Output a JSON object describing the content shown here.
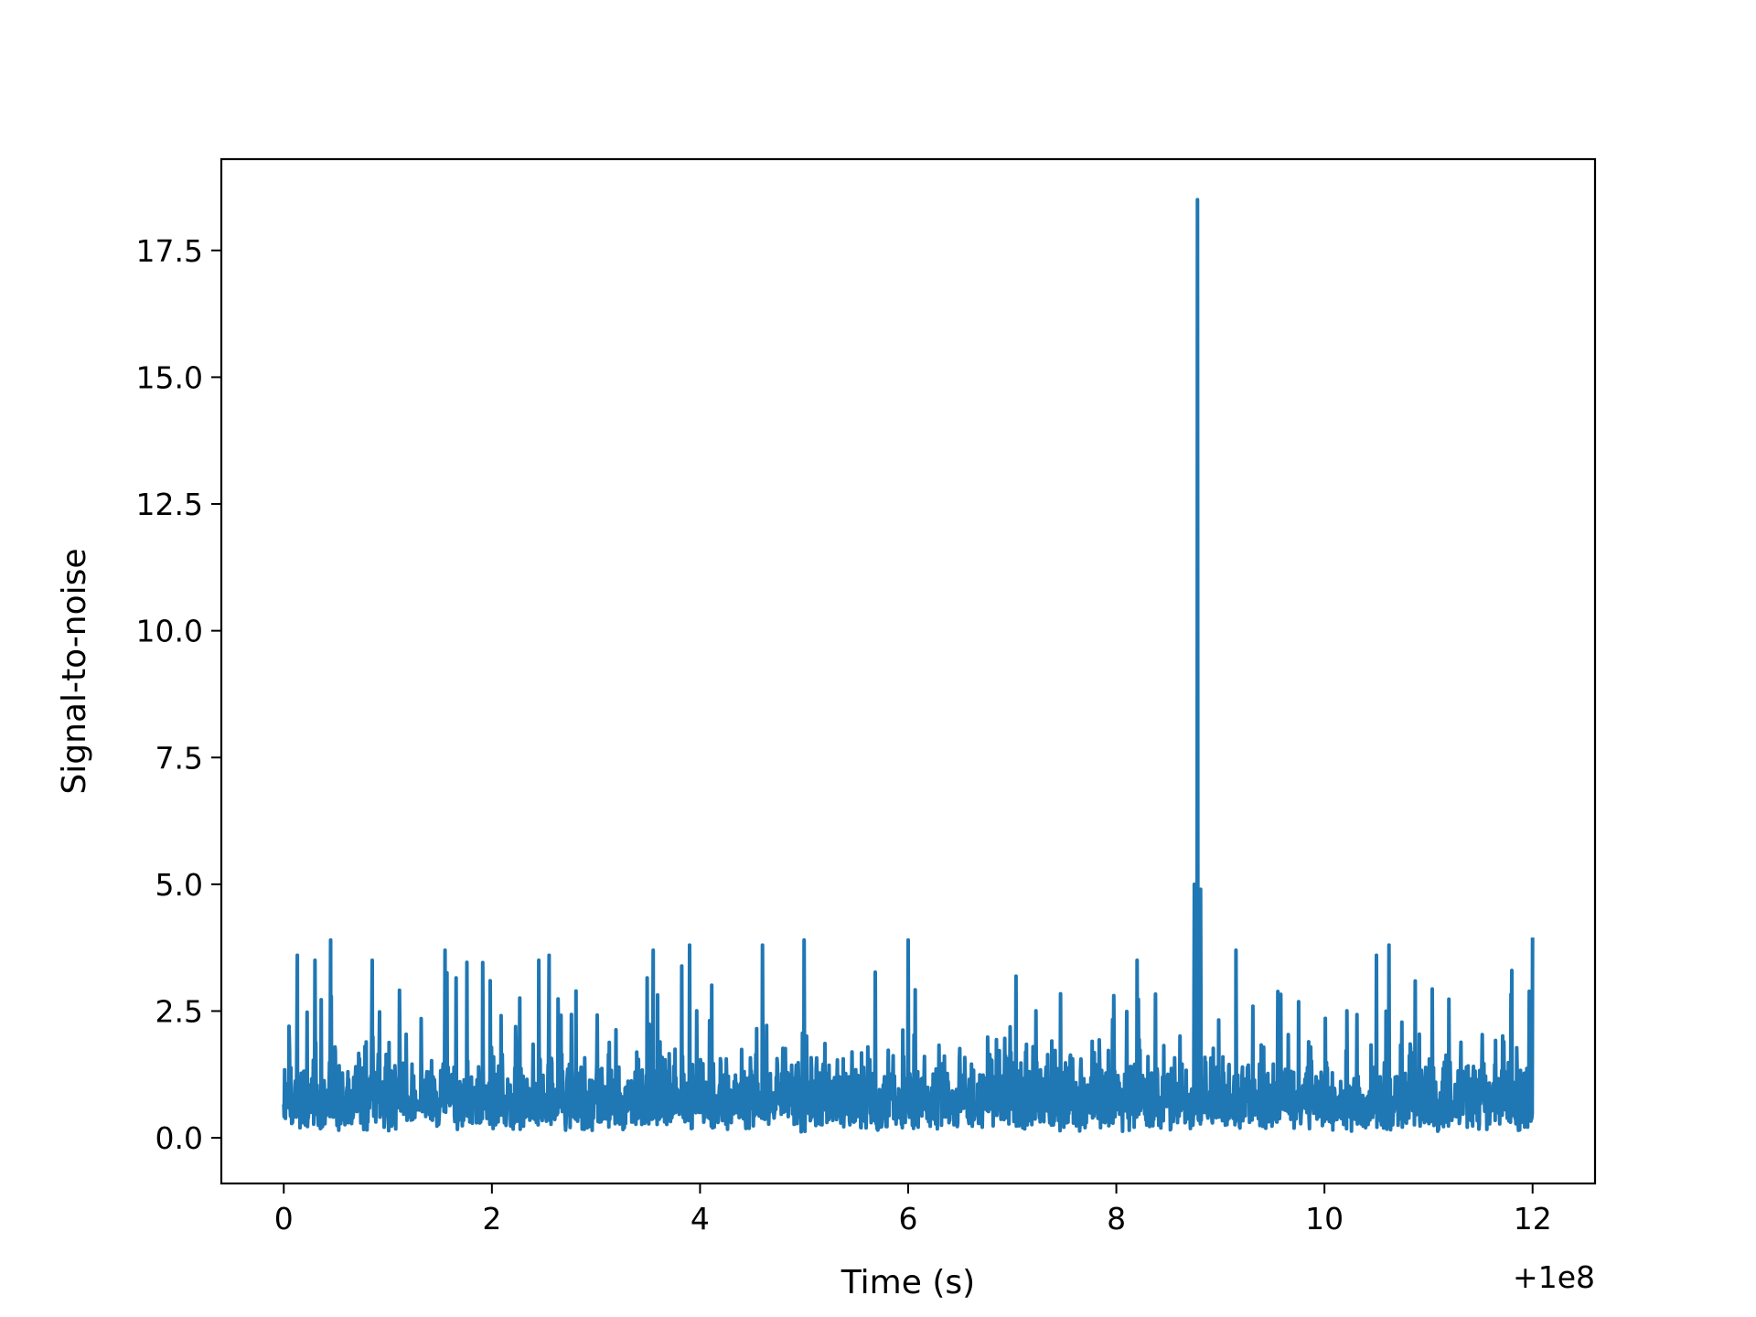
{
  "chart_data": {
    "type": "line",
    "title": "",
    "xlabel": "Time (s)",
    "ylabel": "Signal-to-noise",
    "x_offset_label": "+1e8",
    "xlim": [
      -0.6,
      12.6
    ],
    "ylim": [
      -0.9,
      19.3
    ],
    "xticks": [
      0,
      2,
      4,
      6,
      8,
      10,
      12
    ],
    "xtick_labels": [
      "0",
      "2",
      "4",
      "6",
      "8",
      "10",
      "12"
    ],
    "yticks": [
      0.0,
      2.5,
      5.0,
      7.5,
      10.0,
      12.5,
      15.0,
      17.5
    ],
    "ytick_labels": [
      "0.0",
      "2.5",
      "5.0",
      "7.5",
      "10.0",
      "12.5",
      "15.0",
      "17.5"
    ],
    "grid": false,
    "color": "#1f77b4",
    "series": [
      {
        "x_start": 0.0,
        "x_end": 12.0,
        "noise_baseline": 1.1,
        "noise_range": [
          0.1,
          3.9
        ],
        "notable_points": [
          {
            "x": 0.05,
            "y": 2.2
          },
          {
            "x": 0.13,
            "y": 3.6
          },
          {
            "x": 0.3,
            "y": 3.5
          },
          {
            "x": 0.45,
            "y": 3.9
          },
          {
            "x": 0.85,
            "y": 3.5
          },
          {
            "x": 1.55,
            "y": 3.7
          },
          {
            "x": 2.45,
            "y": 3.5
          },
          {
            "x": 2.55,
            "y": 3.6
          },
          {
            "x": 3.55,
            "y": 3.7
          },
          {
            "x": 3.9,
            "y": 3.8
          },
          {
            "x": 4.6,
            "y": 3.8
          },
          {
            "x": 5.0,
            "y": 3.9
          },
          {
            "x": 6.0,
            "y": 3.9
          },
          {
            "x": 8.2,
            "y": 3.5
          },
          {
            "x": 8.75,
            "y": 5.0
          },
          {
            "x": 8.78,
            "y": 18.5
          },
          {
            "x": 8.81,
            "y": 4.9
          },
          {
            "x": 9.15,
            "y": 3.7
          },
          {
            "x": 10.5,
            "y": 3.6
          },
          {
            "x": 10.62,
            "y": 3.8
          },
          {
            "x": 11.8,
            "y": 3.3
          },
          {
            "x": 12.0,
            "y": 3.95
          }
        ]
      }
    ]
  }
}
